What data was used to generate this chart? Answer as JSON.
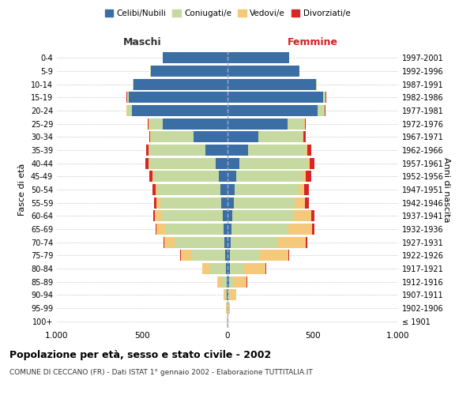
{
  "age_groups": [
    "100+",
    "95-99",
    "90-94",
    "85-89",
    "80-84",
    "75-79",
    "70-74",
    "65-69",
    "60-64",
    "55-59",
    "50-54",
    "45-49",
    "40-44",
    "35-39",
    "30-34",
    "25-29",
    "20-24",
    "15-19",
    "10-14",
    "5-9",
    "0-4"
  ],
  "birth_years": [
    "≤ 1901",
    "1902-1906",
    "1907-1911",
    "1912-1916",
    "1917-1921",
    "1922-1926",
    "1927-1931",
    "1932-1936",
    "1937-1941",
    "1942-1946",
    "1947-1951",
    "1952-1956",
    "1957-1961",
    "1962-1966",
    "1967-1971",
    "1972-1976",
    "1977-1981",
    "1982-1986",
    "1987-1991",
    "1992-1996",
    "1997-2001"
  ],
  "male_celibe": [
    2,
    2,
    4,
    6,
    10,
    15,
    20,
    25,
    30,
    35,
    40,
    50,
    70,
    130,
    200,
    380,
    560,
    580,
    550,
    450,
    380
  ],
  "male_coniugato": [
    1,
    3,
    10,
    30,
    90,
    200,
    290,
    340,
    360,
    360,
    370,
    380,
    390,
    330,
    250,
    80,
    30,
    10,
    5,
    2,
    1
  ],
  "male_vedovo": [
    0,
    2,
    10,
    25,
    50,
    60,
    60,
    50,
    35,
    20,
    10,
    8,
    5,
    3,
    2,
    2,
    1,
    0,
    0,
    0,
    0
  ],
  "male_divorziato": [
    0,
    0,
    0,
    0,
    0,
    2,
    5,
    8,
    12,
    14,
    18,
    20,
    18,
    15,
    8,
    4,
    2,
    1,
    0,
    0,
    0
  ],
  "female_celibe": [
    2,
    2,
    5,
    8,
    12,
    15,
    20,
    25,
    30,
    35,
    40,
    50,
    70,
    120,
    180,
    350,
    530,
    560,
    520,
    420,
    360
  ],
  "female_coniugato": [
    1,
    2,
    10,
    25,
    80,
    170,
    270,
    330,
    360,
    360,
    375,
    390,
    400,
    340,
    260,
    100,
    40,
    15,
    5,
    2,
    1
  ],
  "female_vedovo": [
    2,
    8,
    35,
    80,
    130,
    170,
    170,
    140,
    100,
    60,
    35,
    20,
    12,
    8,
    5,
    3,
    1,
    1,
    0,
    0,
    0
  ],
  "female_divorziato": [
    0,
    0,
    1,
    2,
    3,
    5,
    8,
    12,
    18,
    20,
    25,
    30,
    28,
    22,
    12,
    5,
    3,
    1,
    0,
    0,
    0
  ],
  "colors": {
    "celibe": "#3a6ea5",
    "coniugato": "#c5d9a0",
    "vedovo": "#f5c97a",
    "divorziato": "#d62728"
  },
  "title": "Popolazione per età, sesso e stato civile - 2002",
  "subtitle": "COMUNE DI CECCANO (FR) - Dati ISTAT 1° gennaio 2002 - Elaborazione TUTTITALIA.IT",
  "xlabel_left": "Maschi",
  "xlabel_right": "Femmine",
  "ylabel_left": "Fasce di età",
  "ylabel_right": "Anni di nascita",
  "xlim": 1000,
  "background_color": "#ffffff",
  "grid_color": "#cccccc"
}
